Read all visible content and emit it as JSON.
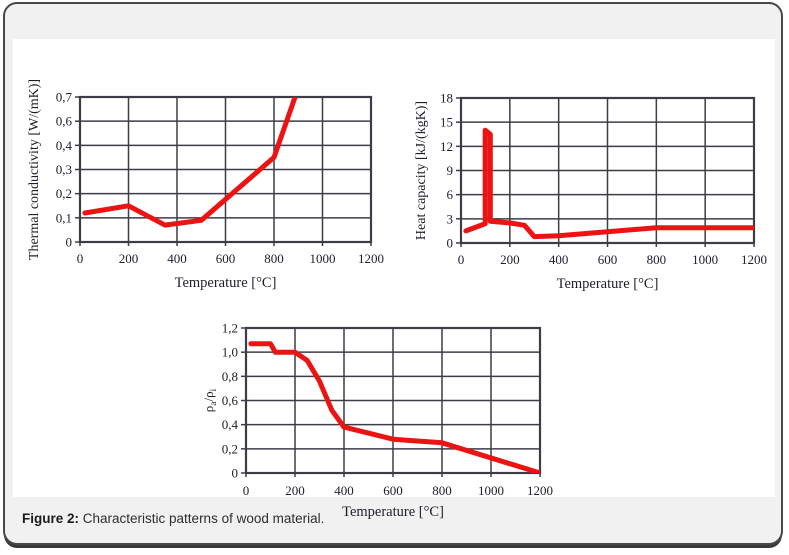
{
  "figure": {
    "caption_label": "Figure 2:",
    "caption_text": " Characteristic patterns of wood material."
  },
  "colors": {
    "line_red": "#ec1313",
    "grid": "#3d3d48",
    "chart_text": "#1e1e28",
    "card_background": "#f1f1f2",
    "card_border": "#47474a",
    "panel_background": "#ffffff"
  },
  "chart_data": [
    {
      "type": "line",
      "title": "",
      "ylabel": "Thermal conductivity [W/(mK)]",
      "xlabel": "Temperature [°C]",
      "x_tick_labels": [
        "0",
        "200",
        "400",
        "600",
        "800",
        "1000",
        "1200"
      ],
      "y_tick_labels_top_to_bottom": [
        "0,7",
        "0,6",
        "0,4",
        "0,3",
        "0,2",
        "0,1",
        "0"
      ],
      "xlim": [
        0,
        1200
      ],
      "ylim": [
        0,
        0.7
      ],
      "grid": true,
      "legend": "none",
      "series": [
        {
          "name": "thermal-conductivity",
          "color": "#ec1313",
          "points": [
            [
              20,
              0.12
            ],
            [
              200,
              0.15
            ],
            [
              350,
              0.07
            ],
            [
              500,
              0.09
            ],
            [
              800,
              0.35
            ],
            [
              1200,
              1.5
            ]
          ]
        }
      ]
    },
    {
      "type": "line",
      "title": "",
      "ylabel": "Heat capacity [kJ/(kgK)]",
      "xlabel": "Temperature [°C]",
      "x_tick_labels": [
        "0",
        "200",
        "400",
        "600",
        "800",
        "1000",
        "1200"
      ],
      "y_tick_labels_top_to_bottom": [
        "18",
        "15",
        "12",
        "9",
        "6",
        "3",
        "0"
      ],
      "xlim": [
        0,
        1200
      ],
      "ylim": [
        0,
        18
      ],
      "grid": true,
      "legend": "none",
      "series": [
        {
          "name": "heat-capacity",
          "color": "#ec1313",
          "points": [
            [
              20,
              1.5
            ],
            [
              90,
              2.3
            ],
            [
              99,
              2.4
            ],
            [
              99,
              14.0
            ],
            [
              120,
              13.5
            ],
            [
              120,
              2.7
            ],
            [
              200,
              2.5
            ],
            [
              260,
              2.2
            ],
            [
              300,
              0.8
            ],
            [
              400,
              0.9
            ],
            [
              600,
              1.4
            ],
            [
              800,
              1.9
            ],
            [
              1200,
              1.9
            ]
          ]
        }
      ]
    },
    {
      "type": "line",
      "title": "",
      "ylabel_segments": [
        {
          "t": "ρ"
        },
        {
          "t": "a",
          "sub": true
        },
        {
          "t": "/ρ"
        },
        {
          "t": "i",
          "sub": true
        }
      ],
      "xlabel": "Temperature [°C]",
      "x_tick_labels": [
        "0",
        "200",
        "400",
        "600",
        "800",
        "1000",
        "1200"
      ],
      "y_tick_labels_top_to_bottom": [
        "1,2",
        "1,0",
        "0,8",
        "0,6",
        "0,4",
        "0,2",
        "0"
      ],
      "xlim": [
        0,
        1200
      ],
      "ylim": [
        0,
        1.2
      ],
      "grid": true,
      "legend": "none",
      "series": [
        {
          "name": "density-ratio",
          "color": "#ec1313",
          "points": [
            [
              20,
              1.07
            ],
            [
              100,
              1.07
            ],
            [
              120,
              1.0
            ],
            [
              200,
              1.0
            ],
            [
              250,
              0.93
            ],
            [
              300,
              0.76
            ],
            [
              350,
              0.52
            ],
            [
              400,
              0.38
            ],
            [
              600,
              0.28
            ],
            [
              800,
              0.25
            ],
            [
              1200,
              0.0
            ]
          ]
        }
      ]
    }
  ]
}
